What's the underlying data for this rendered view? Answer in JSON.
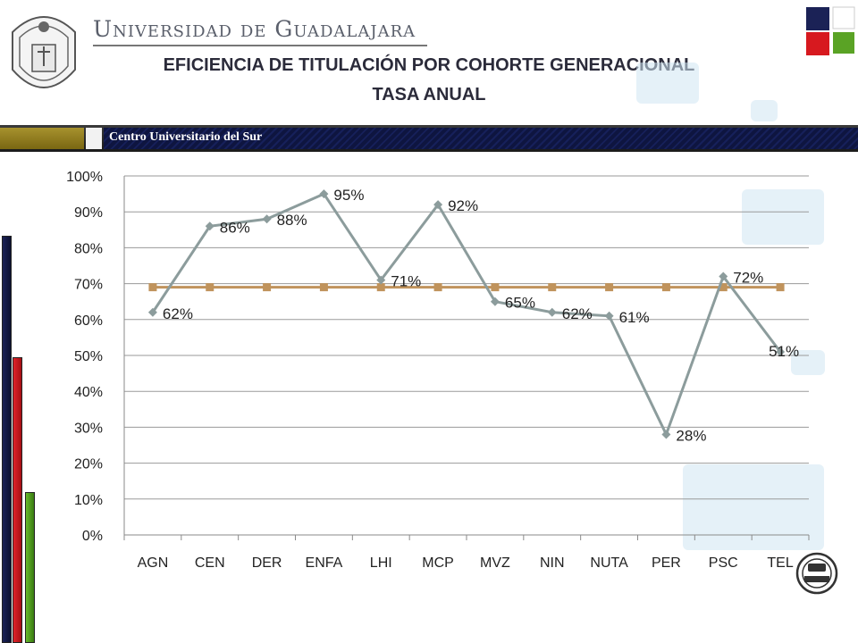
{
  "header": {
    "university": "Universidad de Guadalajara",
    "title_line1": "EFICIENCIA DE TITULACIÓN POR COHORTE GENERACIONAL",
    "title_line2": "TASA ANUAL",
    "campus": "Centro Universitario del Sur"
  },
  "brand_colors": {
    "navy": "#1b2256",
    "red": "#d7191f",
    "green": "#5aa325",
    "gold": "#9c8521"
  },
  "icons": {
    "seal": "university-seal-icon",
    "brand": "colored-squares-logo-icon",
    "cert": "iso-9001-badge-icon"
  },
  "chart_data": {
    "type": "line",
    "categories": [
      "AGN",
      "CEN",
      "DER",
      "ENFA",
      "LHI",
      "MCP",
      "MVZ",
      "NIN",
      "NUTA",
      "PER",
      "PSC",
      "TEL"
    ],
    "series": [
      {
        "values": [
          62,
          86,
          88,
          95,
          71,
          92,
          65,
          62,
          61,
          28,
          72,
          51
        ],
        "data_labels": [
          "62%",
          "86%",
          "88%",
          "95%",
          "71%",
          "92%",
          "65%",
          "62%",
          "61%",
          "28%",
          "72%",
          "51%"
        ],
        "color": "#8c9c9c",
        "marker": "diamond"
      },
      {
        "values": [
          69,
          69,
          69,
          69,
          69,
          69,
          69,
          69,
          69,
          69,
          69,
          69
        ],
        "color": "#c0935c",
        "marker": "square"
      }
    ],
    "yticks": [
      "0%",
      "10%",
      "20%",
      "30%",
      "40%",
      "50%",
      "60%",
      "70%",
      "80%",
      "90%",
      "100%"
    ],
    "ylim": [
      0,
      100
    ],
    "grid": true,
    "legend": "none",
    "title": "",
    "xlabel": "",
    "ylabel": ""
  }
}
